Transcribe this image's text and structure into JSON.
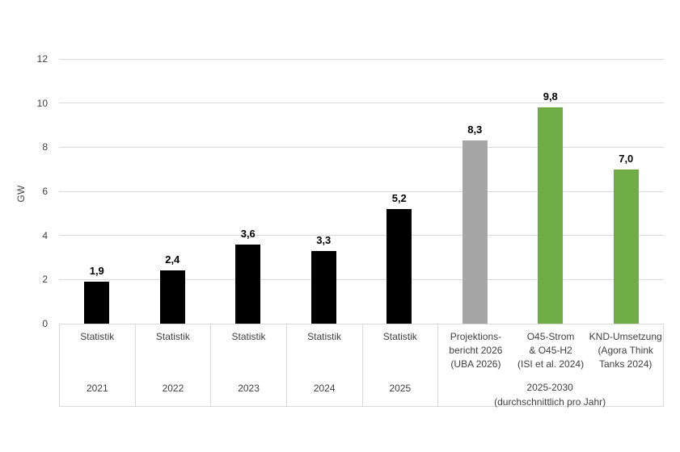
{
  "page": {
    "background": "#ffffff"
  },
  "chart_data": {
    "type": "bar",
    "title": "",
    "xlabel": "",
    "ylabel": "GW",
    "ylim": [
      0,
      12
    ],
    "yticks": [
      0,
      2,
      4,
      6,
      8,
      10,
      12
    ],
    "grid": true,
    "legend": "none",
    "categories": [
      {
        "top": [
          "Statistik"
        ],
        "bottom": "2021"
      },
      {
        "top": [
          "Statistik"
        ],
        "bottom": "2022"
      },
      {
        "top": [
          "Statistik"
        ],
        "bottom": "2023"
      },
      {
        "top": [
          "Statistik"
        ],
        "bottom": "2024"
      },
      {
        "top": [
          "Statistik"
        ],
        "bottom": "2025"
      },
      {
        "top": [
          "Projektions-",
          "bericht 2026",
          "(UBA 2026)"
        ],
        "bottom": ""
      },
      {
        "top": [
          "O45-Strom",
          "& O45-H2",
          "(ISI et al. 2024)"
        ],
        "bottom": ""
      },
      {
        "top": [
          "KND-Umsetzung",
          "(Agora Think",
          "Tanks 2024)"
        ],
        "bottom": ""
      }
    ],
    "group_label_lines": [
      "2025-2030",
      "(durchschnittlich pro Jahr)"
    ],
    "group_span": [
      5,
      8
    ],
    "values": [
      1.9,
      2.4,
      3.6,
      3.3,
      5.2,
      8.3,
      9.8,
      7.0
    ],
    "value_labels": [
      "1,9",
      "2,4",
      "3,6",
      "3,3",
      "5,2",
      "8,3",
      "9,8",
      "7,0"
    ],
    "bar_colors": [
      "#000000",
      "#000000",
      "#000000",
      "#000000",
      "#000000",
      "#a6a6a6",
      "#70ad47",
      "#70ad47"
    ],
    "colors": {
      "grid": "#d9d9d9",
      "table_border": "#d9d9d9",
      "axis_text": "#404040",
      "value_text": "#000000",
      "black_bar": "#000000",
      "gray_bar": "#a6a6a6",
      "green_bar": "#70ad47"
    }
  }
}
